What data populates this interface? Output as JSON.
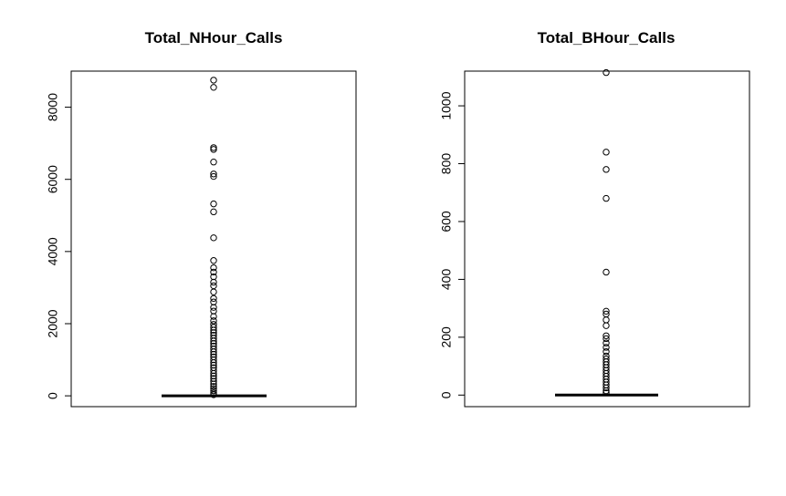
{
  "chart_data": [
    {
      "type": "boxplot",
      "title": "Total_NHour_Calls",
      "xlabel": "",
      "ylabel": "",
      "ylim": [
        -300,
        9000
      ],
      "yticks": [
        0,
        2000,
        4000,
        6000,
        8000
      ],
      "ytick_labels": [
        "0",
        "2000",
        "4000",
        "6000",
        "8000"
      ],
      "box": {
        "min": 0,
        "q1": 0,
        "median": 0,
        "q3": 0,
        "max": 0
      },
      "outliers": [
        8750,
        8550,
        6880,
        6830,
        6480,
        6150,
        6080,
        5320,
        5100,
        4380,
        3750,
        3550,
        3430,
        3300,
        3150,
        3050,
        2880,
        2700,
        2600,
        2450,
        2350,
        2200,
        2080,
        1980,
        1900,
        1820,
        1750,
        1680,
        1600,
        1520,
        1450,
        1380,
        1300,
        1220,
        1150,
        1080,
        1000,
        920,
        850,
        780,
        700,
        620,
        550,
        480,
        400,
        330,
        260,
        200,
        140,
        80,
        30
      ],
      "grid": false
    },
    {
      "type": "boxplot",
      "title": "Total_BHour_Calls",
      "xlabel": "",
      "ylabel": "",
      "ylim": [
        -40,
        1120
      ],
      "yticks": [
        0,
        200,
        400,
        600,
        800,
        1000
      ],
      "ytick_labels": [
        "0",
        "200",
        "400",
        "600",
        "800",
        "1000"
      ],
      "box": {
        "min": 0,
        "q1": 0,
        "median": 0,
        "q3": 0,
        "max": 0
      },
      "outliers": [
        1115,
        840,
        780,
        680,
        425,
        290,
        280,
        260,
        240,
        205,
        195,
        180,
        165,
        150,
        135,
        125,
        115,
        105,
        95,
        85,
        75,
        65,
        55,
        45,
        35,
        25,
        15,
        8
      ],
      "grid": false
    }
  ]
}
